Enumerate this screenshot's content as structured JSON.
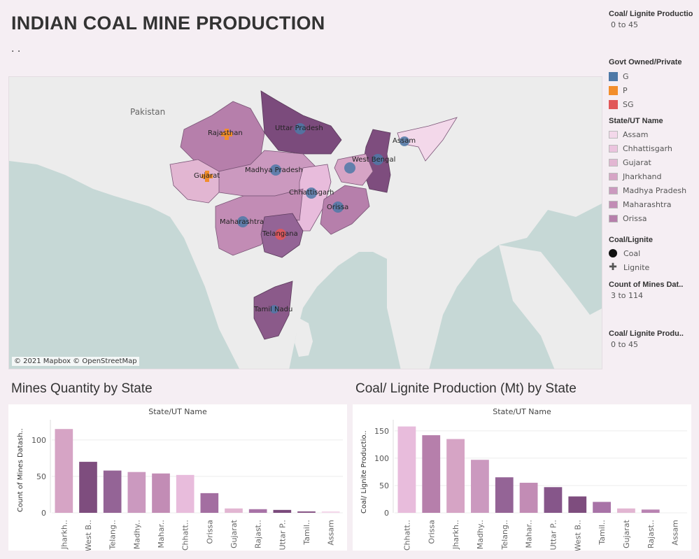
{
  "header": {
    "title": "INDIAN COAL MINE PRODUCTION",
    "subtitle": ". ."
  },
  "map": {
    "country_label": "Pakistan",
    "credit": "© 2021 Mapbox © OpenStreetMap",
    "state_labels": [
      "Rajasthan",
      "Uttar Pradesh",
      "Gujarat",
      "Madhya Pradesh",
      "West Bengal",
      "Assam",
      "Chhattisgarh",
      "Orissa",
      "Maharashtra",
      "Telangana",
      "Tamil Nadu"
    ]
  },
  "legend": {
    "prod_title_1": "Coal/ Lignite Productio..",
    "prod_range_1": "0 to 45",
    "owner_title": "Govt Owned/Private",
    "owner_items": [
      {
        "label": "G",
        "color": "#4e79a7"
      },
      {
        "label": "P",
        "color": "#f28e2b"
      },
      {
        "label": "SG",
        "color": "#e15759"
      }
    ],
    "state_title": "State/UT Name",
    "state_items": [
      {
        "label": "Assam",
        "color": "#f3d8ea"
      },
      {
        "label": "Chhattisgarh",
        "color": "#ebc4de"
      },
      {
        "label": "Gujarat",
        "color": "#e2b6d2"
      },
      {
        "label": "Jharkhand",
        "color": "#d6a4c5"
      },
      {
        "label": "Madhya Pradesh",
        "color": "#cb99bf"
      },
      {
        "label": "Maharashtra",
        "color": "#c28cb5"
      },
      {
        "label": "Orissa",
        "color": "#b67fab"
      }
    ],
    "type_title": "Coal/Lignite",
    "type_items": [
      "Coal",
      "Lignite"
    ],
    "count_title": "Count of Mines Dat..",
    "count_range": "3 to 114",
    "prod_title_2": "Coal/ Lignite Produ..",
    "prod_range_2": "0 to 45"
  },
  "sections": {
    "left_title": "Mines Quantity by State",
    "right_title": "Coal/ Lignite Production (Mt) by State"
  },
  "chart_data": [
    {
      "type": "bar",
      "column_header": "State/UT Name",
      "ylabel": "Count of Mines Datash..",
      "categories": [
        "Jharkh..",
        "West B..",
        "Telang..",
        "Madhy..",
        "Mahar..",
        "Chhatt..",
        "Orissa",
        "Gujarat",
        "Rajast..",
        "Uttar P..",
        "Tamil..",
        "Assam"
      ],
      "values": [
        115,
        70,
        58,
        56,
        54,
        52,
        27,
        6,
        5,
        4,
        2,
        2
      ],
      "colors": [
        "#d6a4c5",
        "#7e4d7e",
        "#946496",
        "#cb99bf",
        "#c28cb5",
        "#e8bcdc",
        "#a36ea1",
        "#e2b6d2",
        "#a873a7",
        "#7b4b7c",
        "#8b5a8a",
        "#f3d8ea"
      ],
      "yticks": [
        0,
        50,
        100
      ],
      "ylim": [
        0,
        120
      ]
    },
    {
      "type": "bar",
      "column_header": "State/UT Name",
      "ylabel": "Coal/ Lignite Productio..",
      "categories": [
        "Chhatt..",
        "Orissa",
        "Jharkh..",
        "Madhy..",
        "Telang..",
        "Mahar..",
        "Uttar P..",
        "West B..",
        "Tamil..",
        "Gujarat",
        "Rajast..",
        "Assam"
      ],
      "values": [
        158,
        142,
        135,
        97,
        65,
        55,
        47,
        30,
        20,
        8,
        6,
        0
      ],
      "colors": [
        "#e8bcdc",
        "#b67fab",
        "#d6a4c5",
        "#cb99bf",
        "#946496",
        "#c28cb5",
        "#86568a",
        "#7e4d7e",
        "#a873a7",
        "#e2b6d2",
        "#b983b2",
        "#f3d8ea"
      ],
      "yticks": [
        0,
        50,
        100,
        150
      ],
      "ylim": [
        0,
        160
      ]
    }
  ]
}
